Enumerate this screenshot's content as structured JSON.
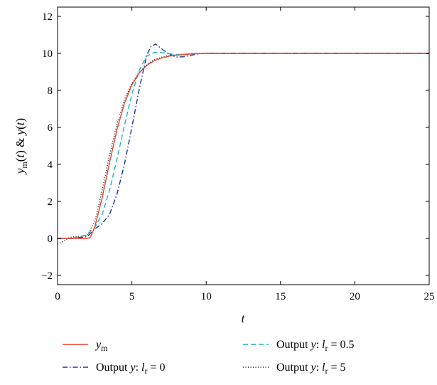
{
  "chart_data": {
    "type": "line",
    "title": "",
    "xlabel": "t",
    "ylabel": "y_m(t) & y(t)",
    "xlim": [
      0,
      25
    ],
    "ylim": [
      -2.5,
      12.5
    ],
    "xticks": [
      0,
      5,
      10,
      15,
      20,
      25
    ],
    "xtick_labels": [
      "0",
      "5",
      "10",
      "15",
      "20",
      "25"
    ],
    "yticks": [
      -2,
      0,
      2,
      4,
      6,
      8,
      10,
      12
    ],
    "ytick_labels": [
      "−2",
      "0",
      "2",
      "4",
      "6",
      "8",
      "10",
      "12"
    ],
    "grid": false,
    "legend_position": "bottom, below plot, two columns",
    "series": [
      {
        "key": "ym",
        "name": "y_m",
        "color": "#e8412b",
        "dash": "solid",
        "x": [
          0,
          1,
          2,
          2.2,
          2.5,
          3,
          3.5,
          4,
          4.5,
          5,
          5.5,
          6,
          6.5,
          7,
          7.5,
          8,
          9,
          10,
          12,
          15,
          20,
          25
        ],
        "y": [
          0,
          0,
          0,
          0.05,
          0.6,
          2.2,
          4.1,
          5.9,
          7.3,
          8.3,
          8.95,
          9.35,
          9.6,
          9.75,
          9.85,
          9.9,
          9.97,
          10,
          10,
          10,
          10,
          10
        ]
      },
      {
        "key": "l0",
        "name": "Output y: l_r = 0",
        "color": "#1f2f9e",
        "dash": "dashdot",
        "x": [
          0,
          1,
          2,
          2.5,
          3,
          3.5,
          4,
          4.5,
          5,
          5.5,
          6,
          6.3,
          6.6,
          7,
          7.5,
          8,
          8.5,
          9,
          9.5,
          10,
          12,
          15,
          20,
          25
        ],
        "y": [
          0,
          0,
          0.1,
          0.5,
          0.8,
          1.3,
          2.4,
          4.0,
          6.0,
          8.1,
          9.9,
          10.4,
          10.5,
          10.25,
          9.95,
          9.8,
          9.82,
          9.9,
          9.98,
          10,
          10,
          10,
          10,
          10
        ]
      },
      {
        "key": "l05",
        "name": "Output y: l_r = 0.5",
        "color": "#1ab3c4",
        "dash": "dashed",
        "x": [
          0,
          1,
          2,
          2.5,
          3,
          3.5,
          4,
          4.5,
          5,
          5.5,
          6,
          6.5,
          7,
          7.5,
          8,
          8.5,
          9,
          10,
          12,
          15,
          20,
          25
        ],
        "y": [
          0,
          0,
          0.2,
          0.6,
          1.3,
          2.6,
          4.3,
          6.1,
          7.8,
          9.1,
          9.85,
          10.05,
          10.05,
          9.98,
          9.93,
          9.95,
          9.98,
          10,
          10,
          10,
          10,
          10
        ]
      },
      {
        "key": "l5",
        "name": "Output y: l_r = 5",
        "color": "#111111",
        "dash": "dotted",
        "x": [
          0,
          0.4,
          0.8,
          1.2,
          2,
          2.5,
          3,
          3.5,
          4,
          4.5,
          5,
          5.5,
          6,
          6.5,
          7,
          7.5,
          8,
          9,
          10,
          12,
          15,
          20,
          25
        ],
        "y": [
          -0.3,
          -0.15,
          0.05,
          0.1,
          0.15,
          0.9,
          2.6,
          4.5,
          6.2,
          7.5,
          8.4,
          9.0,
          9.4,
          9.65,
          9.8,
          9.88,
          9.93,
          9.98,
          10,
          10,
          10,
          10,
          10
        ]
      }
    ],
    "legend": [
      {
        "series": "ym",
        "prefix": "",
        "italic": "y",
        "sub": "m",
        "suffix": ""
      },
      {
        "series": "l05",
        "prefix": "Output ",
        "italic": "y",
        "mid": ": ",
        "italic2": "l",
        "sub": "r",
        "suffix": " = 0.5"
      },
      {
        "series": "l0",
        "prefix": "Output ",
        "italic": "y",
        "mid": ": ",
        "italic2": "l",
        "sub": "r",
        "suffix": " = 0"
      },
      {
        "series": "l5",
        "prefix": "Output ",
        "italic": "y",
        "mid": ": ",
        "italic2": "l",
        "sub": "r",
        "suffix": " = 5"
      }
    ]
  }
}
